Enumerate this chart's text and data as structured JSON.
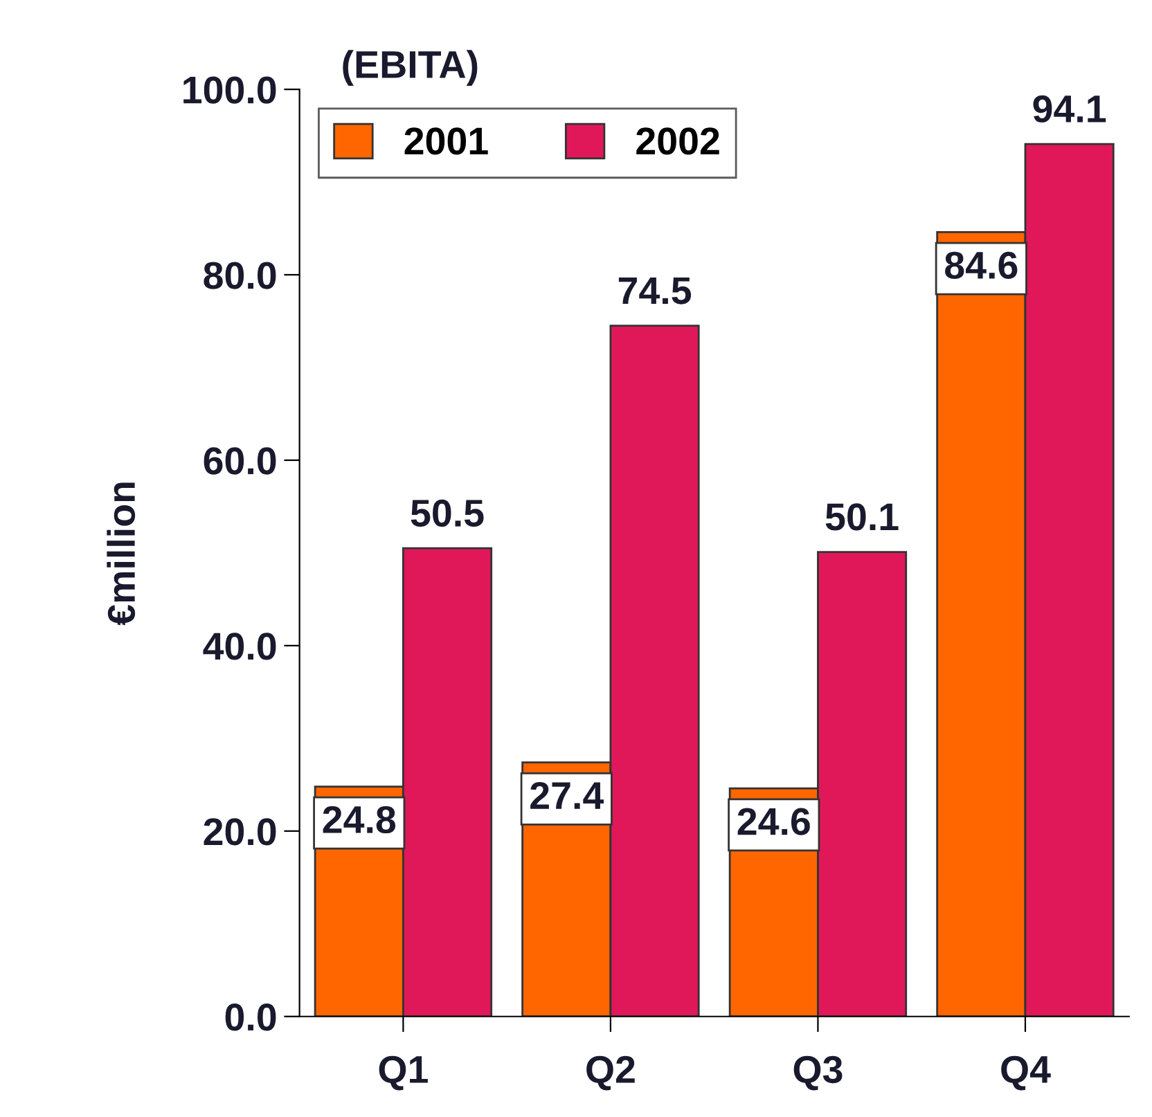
{
  "chart_data": {
    "type": "bar",
    "title": "(EBITA)",
    "ylabel": "€million",
    "categories": [
      "Q1",
      "Q2",
      "Q3",
      "Q4"
    ],
    "series": [
      {
        "name": "2001",
        "color": "#ff6600",
        "values": [
          24.8,
          27.4,
          24.6,
          84.6
        ]
      },
      {
        "name": "2002",
        "color": "#e0185a",
        "values": [
          50.5,
          74.5,
          50.1,
          94.1
        ]
      }
    ],
    "ylim": [
      0,
      100
    ],
    "yticks": [
      {
        "value": 0,
        "label": "0.0"
      },
      {
        "value": 20,
        "label": "20.0"
      },
      {
        "value": 40,
        "label": "40.0"
      },
      {
        "value": 60,
        "label": "60.0"
      },
      {
        "value": 80,
        "label": "80.0"
      },
      {
        "value": 100,
        "label": "100.0"
      }
    ],
    "data_labels": true,
    "grid": false,
    "legend": "top left"
  }
}
